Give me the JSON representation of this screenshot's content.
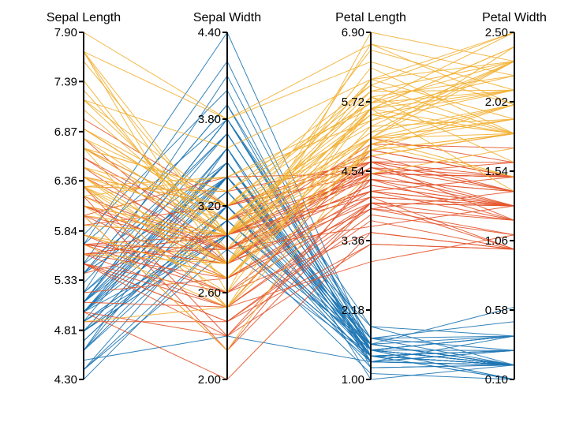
{
  "chart_data": {
    "type": "parallel_coordinates",
    "title": "",
    "axes": [
      {
        "name": "Sepal Length",
        "range": [
          4.3,
          7.9
        ],
        "ticks": [
          "4.30",
          "4.81",
          "5.33",
          "5.84",
          "6.36",
          "6.87",
          "7.39",
          "7.90"
        ]
      },
      {
        "name": "Sepal Width",
        "range": [
          2.0,
          4.4
        ],
        "ticks": [
          "2.00",
          "2.60",
          "3.20",
          "3.80",
          "4.40"
        ]
      },
      {
        "name": "Petal Length",
        "range": [
          1.0,
          6.9
        ],
        "ticks": [
          "1.00",
          "2.18",
          "3.36",
          "4.54",
          "5.72",
          "6.90"
        ]
      },
      {
        "name": "Petal Width",
        "range": [
          0.1,
          2.5
        ],
        "ticks": [
          "0.10",
          "0.58",
          "1.06",
          "1.54",
          "2.02",
          "2.50"
        ]
      }
    ],
    "legend": "none",
    "grid": false,
    "series": [
      {
        "color": "#1f77b4",
        "rows": [
          [
            5.1,
            3.5,
            1.4,
            0.2
          ],
          [
            4.9,
            3.0,
            1.4,
            0.2
          ],
          [
            4.7,
            3.2,
            1.3,
            0.2
          ],
          [
            4.6,
            3.1,
            1.5,
            0.2
          ],
          [
            5.0,
            3.6,
            1.4,
            0.2
          ],
          [
            5.4,
            3.9,
            1.7,
            0.4
          ],
          [
            4.6,
            3.4,
            1.4,
            0.3
          ],
          [
            5.0,
            3.4,
            1.5,
            0.2
          ],
          [
            4.4,
            2.9,
            1.4,
            0.2
          ],
          [
            4.9,
            3.1,
            1.5,
            0.1
          ],
          [
            5.4,
            3.7,
            1.5,
            0.2
          ],
          [
            4.8,
            3.4,
            1.6,
            0.2
          ],
          [
            4.8,
            3.0,
            1.4,
            0.1
          ],
          [
            4.3,
            3.0,
            1.1,
            0.1
          ],
          [
            5.8,
            4.0,
            1.2,
            0.2
          ],
          [
            5.7,
            4.4,
            1.5,
            0.4
          ],
          [
            5.4,
            3.9,
            1.3,
            0.4
          ],
          [
            5.1,
            3.5,
            1.4,
            0.3
          ],
          [
            5.7,
            3.8,
            1.7,
            0.3
          ],
          [
            5.1,
            3.8,
            1.5,
            0.3
          ],
          [
            5.4,
            3.4,
            1.7,
            0.2
          ],
          [
            5.1,
            3.7,
            1.5,
            0.4
          ],
          [
            4.6,
            3.6,
            1.0,
            0.2
          ],
          [
            5.1,
            3.3,
            1.7,
            0.5
          ],
          [
            4.8,
            3.4,
            1.9,
            0.2
          ],
          [
            5.0,
            3.0,
            1.6,
            0.2
          ],
          [
            5.0,
            3.4,
            1.6,
            0.4
          ],
          [
            5.2,
            3.5,
            1.5,
            0.2
          ],
          [
            5.2,
            3.4,
            1.4,
            0.2
          ],
          [
            4.7,
            3.2,
            1.6,
            0.2
          ],
          [
            4.8,
            3.1,
            1.6,
            0.2
          ],
          [
            5.4,
            3.4,
            1.5,
            0.4
          ],
          [
            5.2,
            4.1,
            1.5,
            0.1
          ],
          [
            5.5,
            4.2,
            1.4,
            0.2
          ],
          [
            4.9,
            3.1,
            1.5,
            0.2
          ],
          [
            5.0,
            3.2,
            1.2,
            0.2
          ],
          [
            5.5,
            3.5,
            1.3,
            0.2
          ],
          [
            4.9,
            3.6,
            1.4,
            0.1
          ],
          [
            4.4,
            3.0,
            1.3,
            0.2
          ],
          [
            5.1,
            3.4,
            1.5,
            0.2
          ],
          [
            5.0,
            3.5,
            1.3,
            0.3
          ],
          [
            4.5,
            2.3,
            1.3,
            0.3
          ],
          [
            4.4,
            3.2,
            1.3,
            0.2
          ],
          [
            5.0,
            3.5,
            1.6,
            0.6
          ],
          [
            5.1,
            3.8,
            1.9,
            0.4
          ],
          [
            4.8,
            3.0,
            1.4,
            0.3
          ],
          [
            5.1,
            3.8,
            1.6,
            0.2
          ],
          [
            4.6,
            3.2,
            1.4,
            0.2
          ],
          [
            5.3,
            3.7,
            1.5,
            0.2
          ],
          [
            5.0,
            3.3,
            1.4,
            0.2
          ]
        ]
      },
      {
        "color": "#e4572e",
        "rows": [
          [
            7.0,
            3.2,
            4.7,
            1.4
          ],
          [
            6.4,
            3.2,
            4.5,
            1.5
          ],
          [
            6.9,
            3.1,
            4.9,
            1.5
          ],
          [
            5.5,
            2.3,
            4.0,
            1.3
          ],
          [
            6.5,
            2.8,
            4.6,
            1.5
          ],
          [
            5.7,
            2.8,
            4.5,
            1.3
          ],
          [
            6.3,
            3.3,
            4.7,
            1.6
          ],
          [
            4.9,
            2.4,
            3.3,
            1.0
          ],
          [
            6.6,
            2.9,
            4.6,
            1.3
          ],
          [
            5.2,
            2.7,
            3.9,
            1.4
          ],
          [
            5.0,
            2.0,
            3.5,
            1.0
          ],
          [
            5.9,
            3.0,
            4.2,
            1.5
          ],
          [
            6.0,
            2.2,
            4.0,
            1.0
          ],
          [
            6.1,
            2.9,
            4.7,
            1.4
          ],
          [
            5.6,
            2.9,
            3.6,
            1.3
          ],
          [
            6.7,
            3.1,
            4.4,
            1.4
          ],
          [
            5.6,
            3.0,
            4.5,
            1.5
          ],
          [
            5.8,
            2.7,
            4.1,
            1.0
          ],
          [
            6.2,
            2.2,
            4.5,
            1.5
          ],
          [
            5.6,
            2.5,
            3.9,
            1.1
          ],
          [
            5.9,
            3.2,
            4.8,
            1.8
          ],
          [
            6.1,
            2.8,
            4.0,
            1.3
          ],
          [
            6.3,
            2.5,
            4.9,
            1.5
          ],
          [
            6.1,
            2.8,
            4.7,
            1.2
          ],
          [
            6.4,
            2.9,
            4.3,
            1.3
          ],
          [
            6.6,
            3.0,
            4.4,
            1.4
          ],
          [
            6.8,
            2.8,
            4.8,
            1.4
          ],
          [
            6.7,
            3.0,
            5.0,
            1.7
          ],
          [
            6.0,
            2.9,
            4.5,
            1.5
          ],
          [
            5.7,
            2.6,
            3.5,
            1.0
          ],
          [
            5.5,
            2.4,
            3.8,
            1.1
          ],
          [
            5.5,
            2.4,
            3.7,
            1.0
          ],
          [
            5.8,
            2.7,
            3.9,
            1.2
          ],
          [
            6.0,
            2.7,
            5.1,
            1.6
          ],
          [
            5.4,
            3.0,
            4.5,
            1.5
          ],
          [
            6.0,
            3.4,
            4.5,
            1.6
          ],
          [
            6.7,
            3.1,
            4.7,
            1.5
          ],
          [
            6.3,
            2.3,
            4.4,
            1.3
          ],
          [
            5.6,
            3.0,
            4.1,
            1.3
          ],
          [
            5.5,
            2.5,
            4.0,
            1.3
          ],
          [
            5.5,
            2.6,
            4.4,
            1.2
          ],
          [
            6.1,
            3.0,
            4.6,
            1.4
          ],
          [
            5.8,
            2.6,
            4.0,
            1.2
          ],
          [
            5.0,
            2.3,
            3.3,
            1.0
          ],
          [
            5.6,
            2.7,
            4.2,
            1.3
          ],
          [
            5.7,
            3.0,
            4.2,
            1.2
          ],
          [
            5.7,
            2.9,
            4.2,
            1.3
          ],
          [
            6.2,
            2.9,
            4.3,
            1.3
          ],
          [
            5.1,
            2.5,
            3.0,
            1.1
          ],
          [
            5.7,
            2.8,
            4.1,
            1.3
          ]
        ]
      },
      {
        "color": "#f2b134",
        "rows": [
          [
            6.3,
            3.3,
            6.0,
            2.5
          ],
          [
            5.8,
            2.7,
            5.1,
            1.9
          ],
          [
            7.1,
            3.0,
            5.9,
            2.1
          ],
          [
            6.3,
            2.9,
            5.6,
            1.8
          ],
          [
            6.5,
            3.0,
            5.8,
            2.2
          ],
          [
            7.6,
            3.0,
            6.6,
            2.1
          ],
          [
            4.9,
            2.5,
            4.5,
            1.7
          ],
          [
            7.3,
            2.9,
            6.3,
            1.8
          ],
          [
            6.7,
            2.5,
            5.8,
            1.8
          ],
          [
            7.2,
            3.6,
            6.1,
            2.5
          ],
          [
            6.5,
            3.2,
            5.1,
            2.0
          ],
          [
            6.4,
            2.7,
            5.3,
            1.9
          ],
          [
            6.8,
            3.0,
            5.5,
            2.1
          ],
          [
            5.7,
            2.5,
            5.0,
            2.0
          ],
          [
            5.8,
            2.8,
            5.1,
            2.4
          ],
          [
            6.4,
            3.2,
            5.3,
            2.3
          ],
          [
            6.5,
            3.0,
            5.5,
            1.8
          ],
          [
            7.7,
            3.8,
            6.7,
            2.2
          ],
          [
            7.7,
            2.6,
            6.9,
            2.3
          ],
          [
            6.0,
            2.2,
            5.0,
            1.5
          ],
          [
            6.9,
            3.2,
            5.7,
            2.3
          ],
          [
            5.6,
            2.8,
            4.9,
            2.0
          ],
          [
            7.7,
            2.8,
            6.7,
            2.0
          ],
          [
            6.3,
            2.7,
            4.9,
            1.8
          ],
          [
            6.7,
            3.3,
            5.7,
            2.1
          ],
          [
            7.2,
            3.2,
            6.0,
            1.8
          ],
          [
            6.2,
            2.8,
            4.8,
            1.8
          ],
          [
            6.1,
            3.0,
            4.9,
            1.8
          ],
          [
            6.4,
            2.8,
            5.6,
            2.1
          ],
          [
            7.2,
            3.0,
            5.8,
            1.6
          ],
          [
            7.4,
            2.8,
            6.1,
            1.9
          ],
          [
            7.9,
            3.8,
            6.4,
            2.0
          ],
          [
            6.4,
            2.8,
            5.6,
            2.2
          ],
          [
            6.3,
            2.8,
            5.1,
            1.5
          ],
          [
            6.1,
            2.6,
            5.6,
            1.4
          ],
          [
            7.7,
            3.0,
            6.1,
            2.3
          ],
          [
            6.3,
            3.4,
            5.6,
            2.4
          ],
          [
            6.4,
            3.1,
            5.5,
            1.8
          ],
          [
            6.0,
            3.0,
            4.8,
            1.8
          ],
          [
            6.9,
            3.1,
            5.4,
            2.1
          ],
          [
            6.7,
            3.1,
            5.6,
            2.4
          ],
          [
            6.9,
            3.1,
            5.1,
            2.3
          ],
          [
            5.8,
            2.7,
            5.1,
            1.9
          ],
          [
            6.8,
            3.2,
            5.9,
            2.3
          ],
          [
            6.7,
            3.3,
            5.7,
            2.5
          ],
          [
            6.7,
            3.0,
            5.2,
            2.3
          ],
          [
            6.3,
            2.5,
            5.0,
            1.9
          ],
          [
            6.5,
            3.0,
            5.2,
            2.0
          ],
          [
            6.2,
            3.4,
            5.4,
            2.3
          ],
          [
            5.9,
            3.0,
            5.1,
            1.8
          ]
        ]
      }
    ]
  }
}
